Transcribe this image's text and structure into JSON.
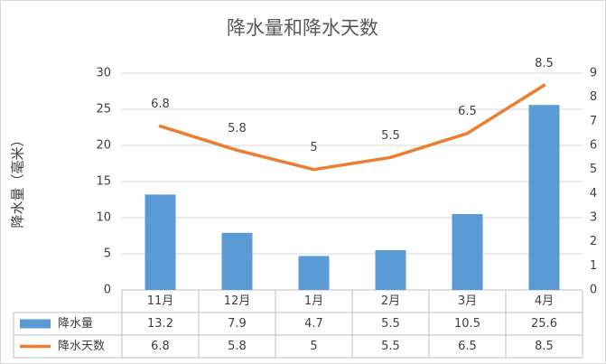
{
  "chart_data": {
    "type": "combo",
    "title": "降水量和降水天数",
    "y_label": "降水量（毫米）",
    "categories": [
      "11月",
      "12月",
      "1月",
      "2月",
      "3月",
      "4月"
    ],
    "series": [
      {
        "name": "降水量",
        "type": "bar",
        "color": "#5b9bd5",
        "values": [
          13.2,
          7.9,
          4.7,
          5.5,
          10.5,
          25.6
        ]
      },
      {
        "name": "降水天数",
        "type": "line",
        "axis": "y2",
        "color": "#ed7d31",
        "values": [
          6.8,
          5.8,
          5,
          5.5,
          6.5,
          8.5
        ]
      }
    ],
    "ylim": [
      0,
      30
    ],
    "yticks": [
      0,
      5,
      10,
      15,
      20,
      25,
      30
    ],
    "y2lim": [
      0,
      9
    ],
    "y2ticks": [
      0,
      1,
      2,
      3,
      4,
      5,
      6,
      7,
      8,
      9
    ],
    "grid": true,
    "data_labels": true,
    "data_table": true
  }
}
